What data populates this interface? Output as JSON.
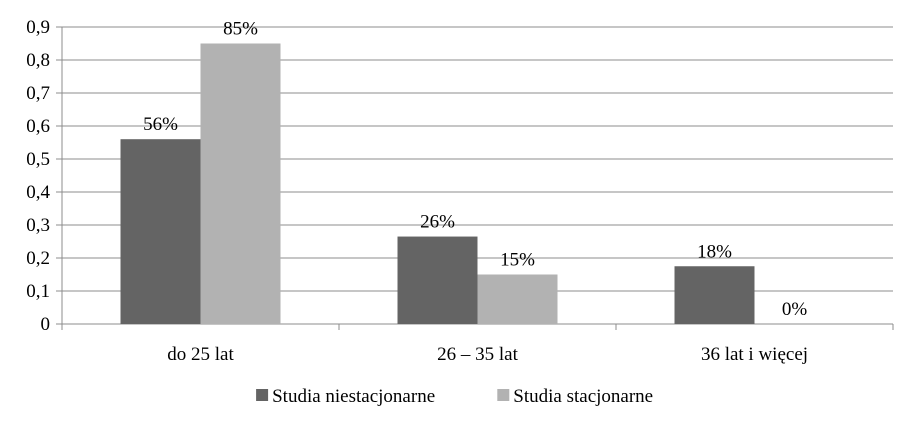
{
  "chart_data": {
    "type": "bar",
    "categories": [
      "do 25 lat",
      "26 – 35 lat",
      "36 lat i więcej"
    ],
    "series": [
      {
        "name": "Studia niestacjonarne",
        "values": [
          0.56,
          0.265,
          0.175
        ],
        "labels": [
          "56%",
          "26%",
          "18%"
        ],
        "color": "#646464"
      },
      {
        "name": "Studia stacjonarne",
        "values": [
          0.85,
          0.15,
          0
        ],
        "labels": [
          "85%",
          "15%",
          "0%"
        ],
        "color": "#b2b2b2"
      }
    ],
    "ylim": [
      0,
      0.9
    ],
    "yticks": [
      "0",
      "0,1",
      "0,2",
      "0,3",
      "0,4",
      "0,5",
      "0,6",
      "0,7",
      "0,8",
      "0,9"
    ],
    "grid": true,
    "legend_position": "bottom"
  }
}
